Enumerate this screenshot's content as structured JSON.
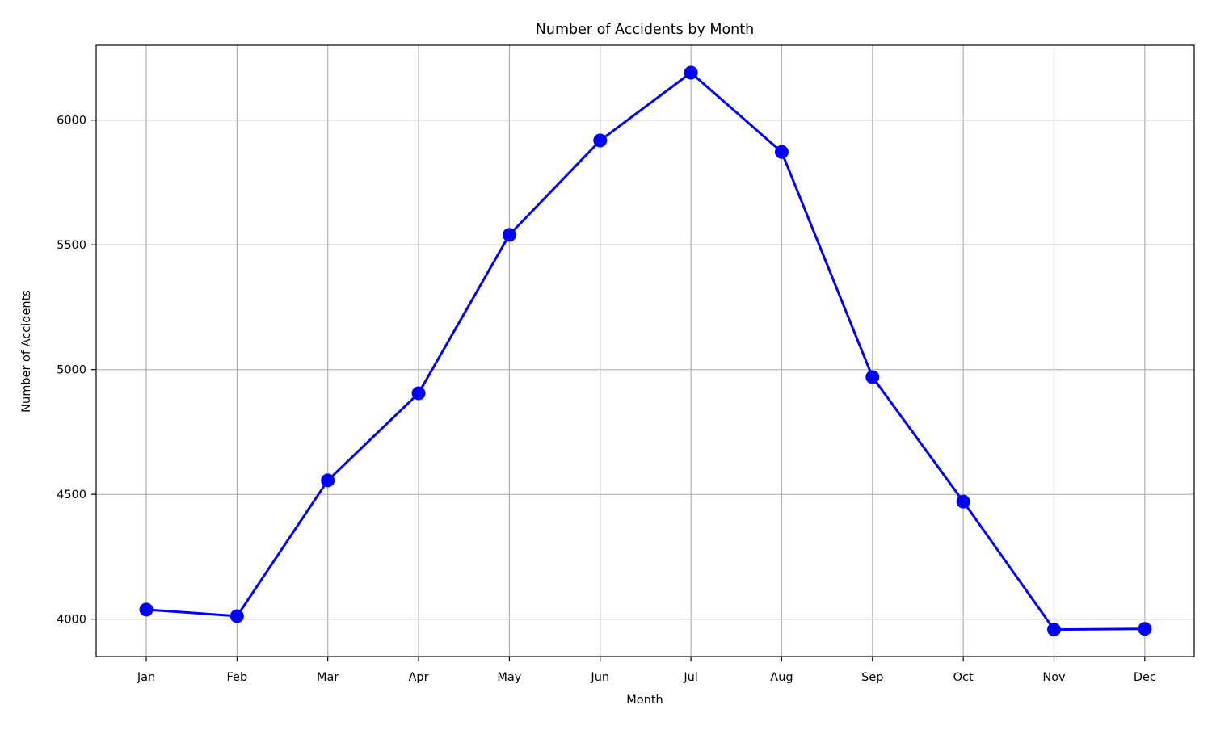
{
  "chart_data": {
    "type": "line",
    "title": "Number of Accidents by Month",
    "xlabel": "Month",
    "ylabel": "Number of Accidents",
    "categories": [
      "Jan",
      "Feb",
      "Mar",
      "Apr",
      "May",
      "Jun",
      "Jul",
      "Aug",
      "Sep",
      "Oct",
      "Nov",
      "Dec"
    ],
    "series": [
      {
        "values": [
          4038,
          4012,
          4556,
          4905,
          5540,
          5918,
          6190,
          5872,
          4970,
          4471,
          3958,
          3961
        ]
      }
    ],
    "ylim": [
      3850,
      6300
    ],
    "yticks": [
      4000,
      4500,
      5000,
      5500,
      6000
    ],
    "grid": true,
    "colors": {
      "line": "#0000ff",
      "marker": "#0000ff",
      "grid": "#b0b0b0",
      "axes": "#000000"
    }
  }
}
